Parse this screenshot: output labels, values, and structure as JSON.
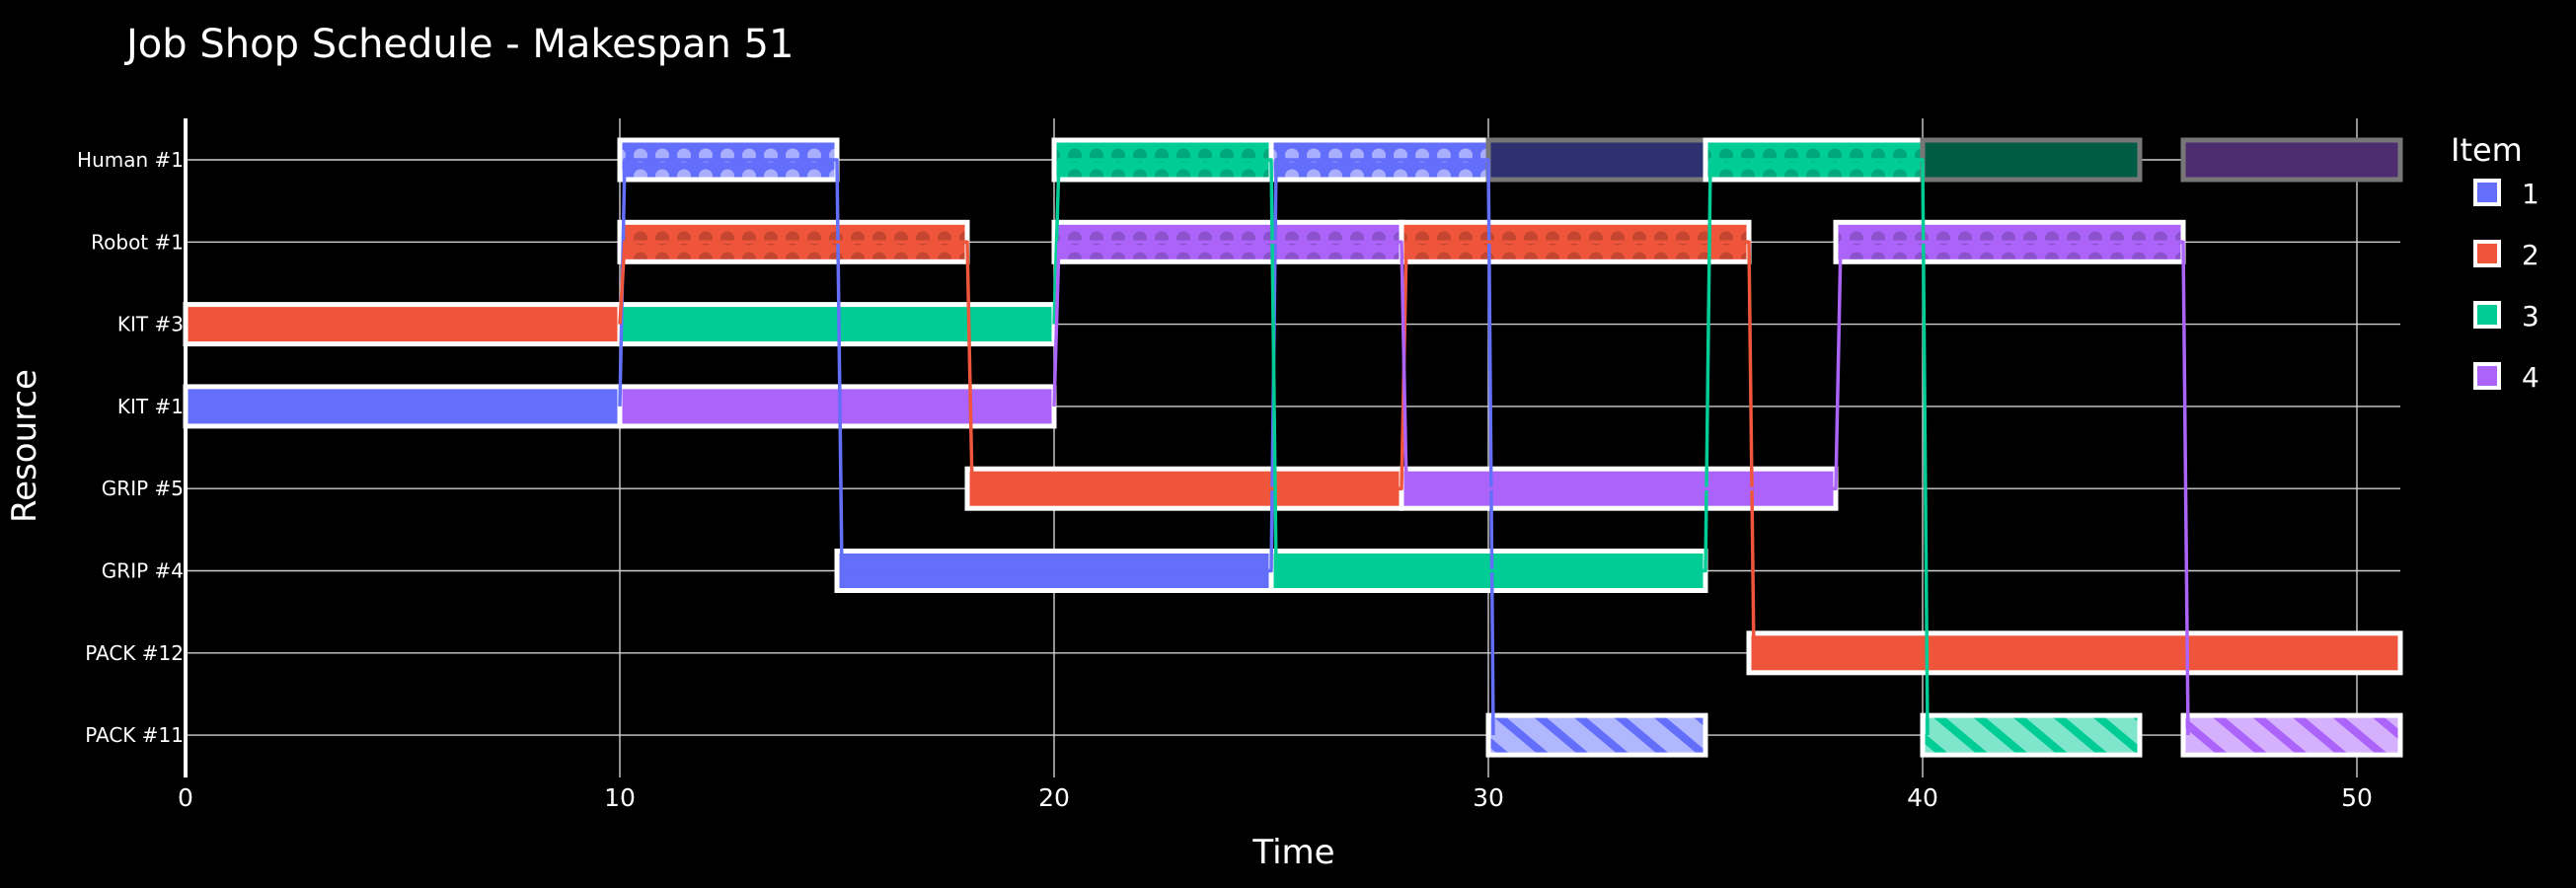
{
  "chart_data": {
    "type": "gantt",
    "title": "Job Shop Schedule - Makespan 51",
    "xlabel": "Time",
    "ylabel": "Resource",
    "xlim": [
      0,
      51
    ],
    "xticks": [
      0,
      10,
      20,
      30,
      40,
      50
    ],
    "grid": true,
    "legend": {
      "title": "Item",
      "position": "right",
      "items": [
        "1",
        "2",
        "3",
        "4"
      ]
    },
    "resources": [
      "Human #1",
      "Robot #1",
      "KIT #3",
      "KIT #1",
      "GRIP #5",
      "GRIP #4",
      "PACK #12",
      "PACK #11"
    ],
    "colors": {
      "1": "#636efa",
      "2": "#ef553b",
      "3": "#00cc96",
      "4": "#ab63fa"
    },
    "tasks": [
      {
        "item": "2",
        "resource": "KIT #3",
        "start": 0,
        "end": 10,
        "style": "solid"
      },
      {
        "item": "3",
        "resource": "KIT #3",
        "start": 10,
        "end": 20,
        "style": "solid"
      },
      {
        "item": "1",
        "resource": "KIT #1",
        "start": 0,
        "end": 10,
        "style": "solid"
      },
      {
        "item": "4",
        "resource": "KIT #1",
        "start": 10,
        "end": 20,
        "style": "solid"
      },
      {
        "item": "1",
        "resource": "Human #1",
        "start": 10,
        "end": 15,
        "style": "dots"
      },
      {
        "item": "3",
        "resource": "Human #1",
        "start": 20,
        "end": 25,
        "style": "dots"
      },
      {
        "item": "1",
        "resource": "Human #1",
        "start": 25,
        "end": 30,
        "style": "dots"
      },
      {
        "item": "1",
        "resource": "Human #1",
        "start": 30,
        "end": 35,
        "style": "faded"
      },
      {
        "item": "3",
        "resource": "Human #1",
        "start": 35,
        "end": 40,
        "style": "dots"
      },
      {
        "item": "3",
        "resource": "Human #1",
        "start": 40,
        "end": 45,
        "style": "faded"
      },
      {
        "item": "4",
        "resource": "Human #1",
        "start": 46,
        "end": 51,
        "style": "faded"
      },
      {
        "item": "2",
        "resource": "Robot #1",
        "start": 10,
        "end": 18,
        "style": "dots"
      },
      {
        "item": "4",
        "resource": "Robot #1",
        "start": 20,
        "end": 28,
        "style": "dots"
      },
      {
        "item": "2",
        "resource": "Robot #1",
        "start": 28,
        "end": 36,
        "style": "dots"
      },
      {
        "item": "4",
        "resource": "Robot #1",
        "start": 38,
        "end": 46,
        "style": "dots"
      },
      {
        "item": "2",
        "resource": "GRIP #5",
        "start": 18,
        "end": 28,
        "style": "solid"
      },
      {
        "item": "4",
        "resource": "GRIP #5",
        "start": 28,
        "end": 38,
        "style": "solid"
      },
      {
        "item": "1",
        "resource": "GRIP #4",
        "start": 15,
        "end": 25,
        "style": "solid"
      },
      {
        "item": "3",
        "resource": "GRIP #4",
        "start": 25,
        "end": 35,
        "style": "solid"
      },
      {
        "item": "2",
        "resource": "PACK #12",
        "start": 36,
        "end": 51,
        "style": "solid"
      },
      {
        "item": "1",
        "resource": "PACK #11",
        "start": 30,
        "end": 35,
        "style": "hatch"
      },
      {
        "item": "3",
        "resource": "PACK #11",
        "start": 40,
        "end": 45,
        "style": "hatch"
      },
      {
        "item": "4",
        "resource": "PACK #11",
        "start": 46,
        "end": 51,
        "style": "hatch"
      }
    ],
    "flows": [
      {
        "item": "1",
        "points": [
          [
            10,
            "KIT #1"
          ],
          [
            10,
            "Human #1"
          ],
          [
            15,
            "Human #1"
          ],
          [
            15,
            "GRIP #4"
          ],
          [
            25,
            "GRIP #4"
          ],
          [
            25,
            "Human #1"
          ],
          [
            30,
            "Human #1"
          ],
          [
            30,
            "PACK #11"
          ]
        ]
      },
      {
        "item": "2",
        "points": [
          [
            10,
            "KIT #3"
          ],
          [
            10,
            "Robot #1"
          ],
          [
            18,
            "Robot #1"
          ],
          [
            18,
            "GRIP #5"
          ],
          [
            28,
            "GRIP #5"
          ],
          [
            28,
            "Robot #1"
          ],
          [
            36,
            "Robot #1"
          ],
          [
            36,
            "PACK #12"
          ]
        ]
      },
      {
        "item": "3",
        "points": [
          [
            20,
            "KIT #3"
          ],
          [
            20,
            "Human #1"
          ],
          [
            25,
            "Human #1"
          ],
          [
            25,
            "GRIP #4"
          ],
          [
            35,
            "GRIP #4"
          ],
          [
            35,
            "Human #1"
          ],
          [
            40,
            "Human #1"
          ],
          [
            40,
            "PACK #11"
          ]
        ]
      },
      {
        "item": "4",
        "points": [
          [
            20,
            "KIT #1"
          ],
          [
            20,
            "Robot #1"
          ],
          [
            28,
            "Robot #1"
          ],
          [
            28,
            "GRIP #5"
          ],
          [
            38,
            "GRIP #5"
          ],
          [
            38,
            "Robot #1"
          ],
          [
            46,
            "Robot #1"
          ],
          [
            46,
            "PACK #11"
          ]
        ]
      }
    ]
  }
}
